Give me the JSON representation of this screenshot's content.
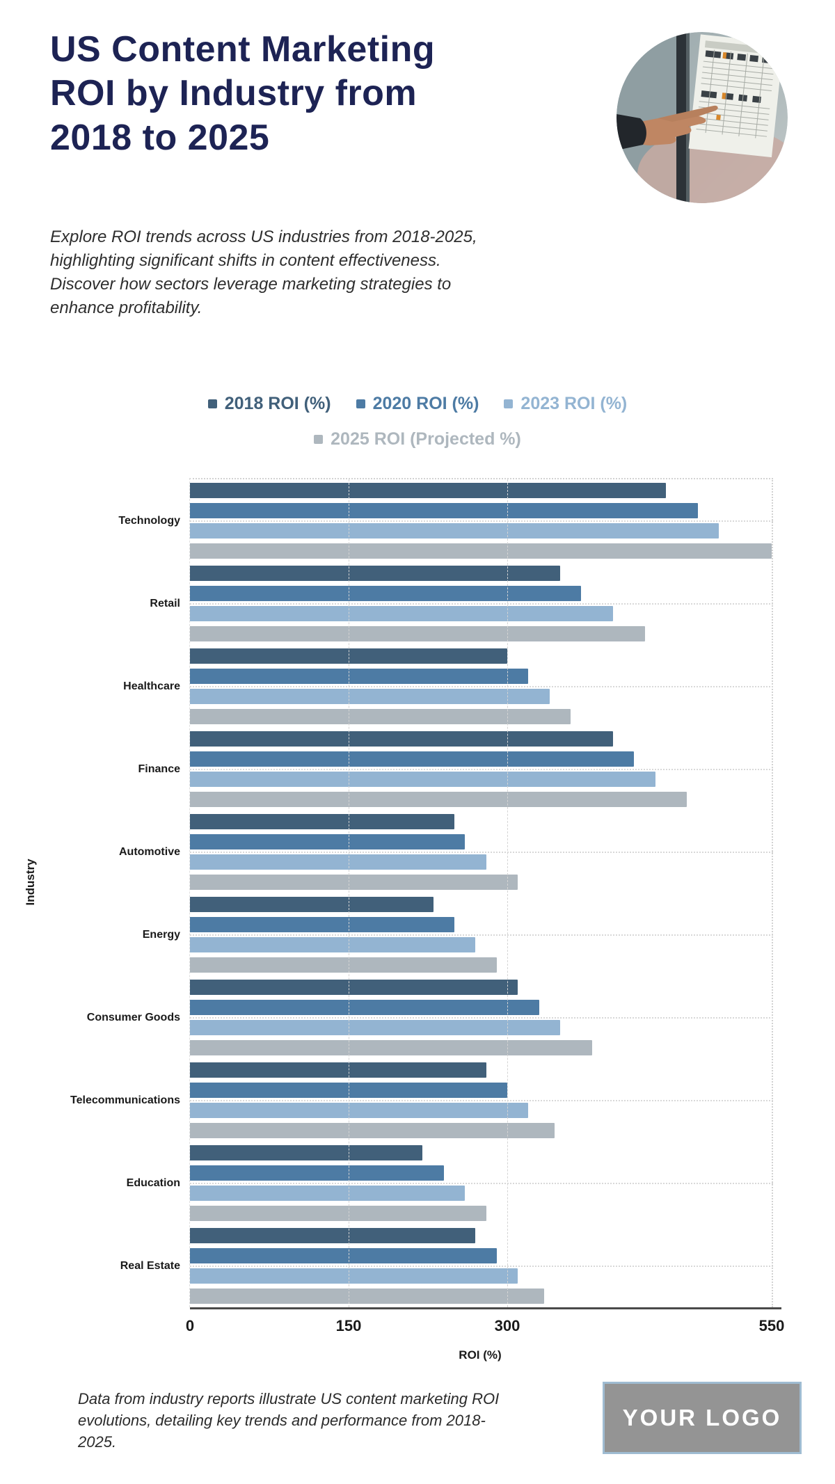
{
  "title": "US Content Marketing ROI by Industry from 2018 to 2025",
  "subtitle_lines": [
    "Explore ROI trends across US industries from 2018-2025,",
    "highlighting significant shifts in content effectiveness.",
    "Discover how sectors leverage marketing strategies to",
    "enhance profitability."
  ],
  "footnote_lines": [
    "Data from industry reports illustrate US content marketing ROI",
    "evolutions, detailing key trends and performance from 2018-",
    "2025."
  ],
  "logo_text": "YOUR LOGO",
  "colors": {
    "title_navy": "#1d2354",
    "axis_line": "#4a4a4a",
    "grid": "#d4d4d4",
    "logo_background": "#949494",
    "logo_border": "#9fbcd2"
  },
  "chart_data": {
    "type": "bar",
    "orientation": "horizontal",
    "title": "",
    "xlabel": "ROI (%)",
    "ylabel": "Industry",
    "xlim": [
      0,
      550
    ],
    "xticks": [
      0,
      150,
      300,
      550
    ],
    "grid": true,
    "legend_position": "top-center",
    "categories": [
      "Technology",
      "Retail",
      "Healthcare",
      "Finance",
      "Automotive",
      "Energy",
      "Consumer Goods",
      "Telecommunications",
      "Education",
      "Real Estate"
    ],
    "series": [
      {
        "name": "2018 ROI (%)",
        "color": "#41607a",
        "values": [
          450,
          350,
          300,
          400,
          250,
          230,
          310,
          280,
          220,
          270
        ]
      },
      {
        "name": "2020 ROI (%)",
        "color": "#4d7ba4",
        "values": [
          480,
          370,
          320,
          420,
          260,
          250,
          330,
          300,
          240,
          290
        ]
      },
      {
        "name": "2023 ROI (%)",
        "color": "#93b4d2",
        "values": [
          500,
          400,
          340,
          440,
          280,
          270,
          350,
          320,
          260,
          310
        ]
      },
      {
        "name": "2025 ROI (Projected %)",
        "color": "#aeb7be",
        "values": [
          550,
          430,
          360,
          470,
          310,
          290,
          380,
          345,
          280,
          335
        ]
      }
    ]
  }
}
